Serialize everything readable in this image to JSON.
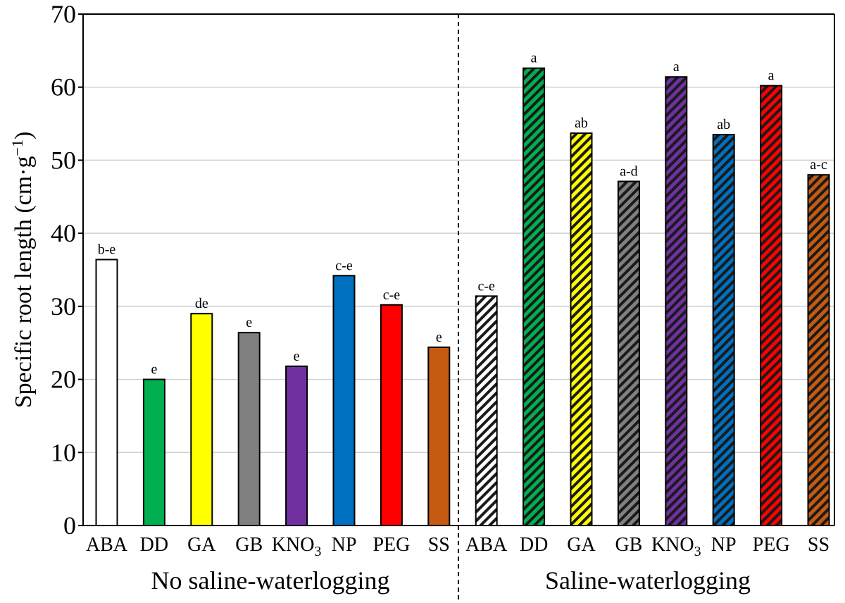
{
  "chart_data": {
    "type": "bar",
    "ylabel": "Specific root length (cm·g",
    "ylabel_sup": "−1",
    "ylabel_close": ")",
    "ylim": [
      0,
      70
    ],
    "yticks": [
      0,
      10,
      20,
      30,
      40,
      50,
      60,
      70
    ],
    "grid": true,
    "groups": [
      {
        "name": "No saline-waterlogging",
        "pattern": "solid",
        "bars": [
          {
            "category": "ABA",
            "value": 36.4,
            "letter": "b-e",
            "color": "#ffffff"
          },
          {
            "category": "DD",
            "value": 20.0,
            "letter": "e",
            "color": "#00b050"
          },
          {
            "category": "GA",
            "value": 29.0,
            "letter": "de",
            "color": "#ffff00"
          },
          {
            "category": "GB",
            "value": 26.4,
            "letter": "e",
            "color": "#808080"
          },
          {
            "category": "KNO",
            "sub": "3",
            "value": 21.8,
            "letter": "e",
            "color": "#7030a0"
          },
          {
            "category": "NP",
            "value": 34.2,
            "letter": "c-e",
            "color": "#0070c0"
          },
          {
            "category": "PEG",
            "value": 30.2,
            "letter": "c-e",
            "color": "#ff0000"
          },
          {
            "category": "SS",
            "value": 24.4,
            "letter": "e",
            "color": "#c55a11"
          }
        ]
      },
      {
        "name": "Saline-waterlogging",
        "pattern": "hatched",
        "bars": [
          {
            "category": "ABA",
            "value": 31.4,
            "letter": "c-e",
            "color": "#ffffff"
          },
          {
            "category": "DD",
            "value": 62.6,
            "letter": "a",
            "color": "#00b050"
          },
          {
            "category": "GA",
            "value": 53.7,
            "letter": "ab",
            "color": "#ffff00"
          },
          {
            "category": "GB",
            "value": 47.1,
            "letter": "a-d",
            "color": "#808080"
          },
          {
            "category": "KNO",
            "sub": "3",
            "value": 61.4,
            "letter": "a",
            "color": "#7030a0"
          },
          {
            "category": "NP",
            "value": 53.5,
            "letter": "ab",
            "color": "#0070c0"
          },
          {
            "category": "PEG",
            "value": 60.2,
            "letter": "a",
            "color": "#ff0000"
          },
          {
            "category": "SS",
            "value": 48.0,
            "letter": "a-c",
            "color": "#c55a11"
          }
        ]
      }
    ]
  }
}
